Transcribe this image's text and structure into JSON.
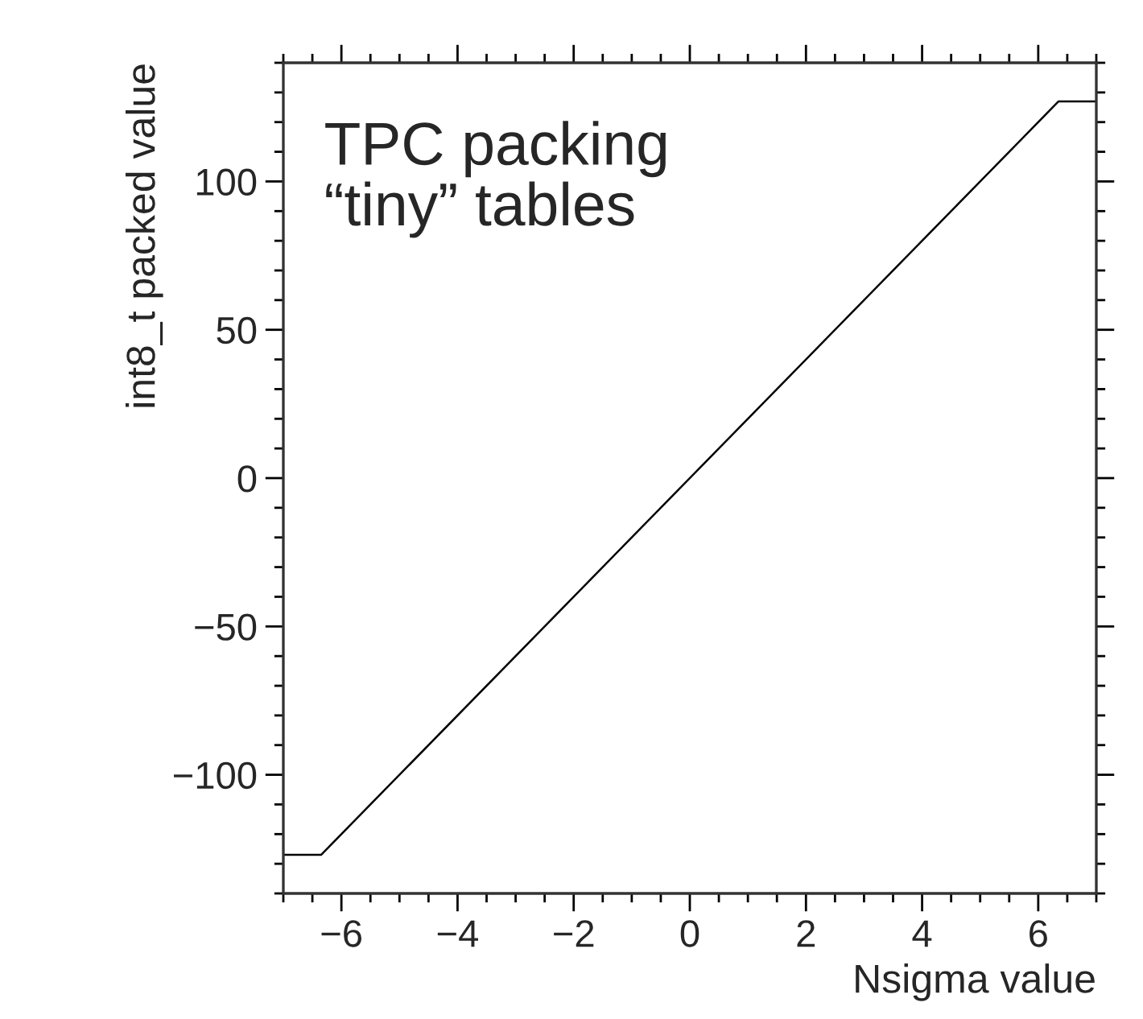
{
  "chart_data": {
    "type": "line",
    "xlabel": "Nsigma value",
    "ylabel": "int8_t packed value",
    "annotations": [
      "TPC packing\n“tiny” tables"
    ],
    "x": [
      -7,
      -6.35,
      6.35,
      7
    ],
    "series": [
      {
        "color": "#000000",
        "values": [
          -127,
          -127,
          127,
          127
        ]
      }
    ],
    "xlim": [
      -7,
      7
    ],
    "ylim": [
      -140,
      140
    ],
    "xticks": [
      {
        "value": -6,
        "label": "−6"
      },
      {
        "value": -4,
        "label": "−4"
      },
      {
        "value": -2,
        "label": "−2"
      },
      0,
      2,
      4,
      6
    ],
    "yticks": [
      {
        "value": -100,
        "label": "−100"
      },
      {
        "value": -50,
        "label": "−50"
      },
      0,
      50,
      100
    ],
    "grid": false,
    "legend": false,
    "marker": "none",
    "line_style": "solid"
  }
}
